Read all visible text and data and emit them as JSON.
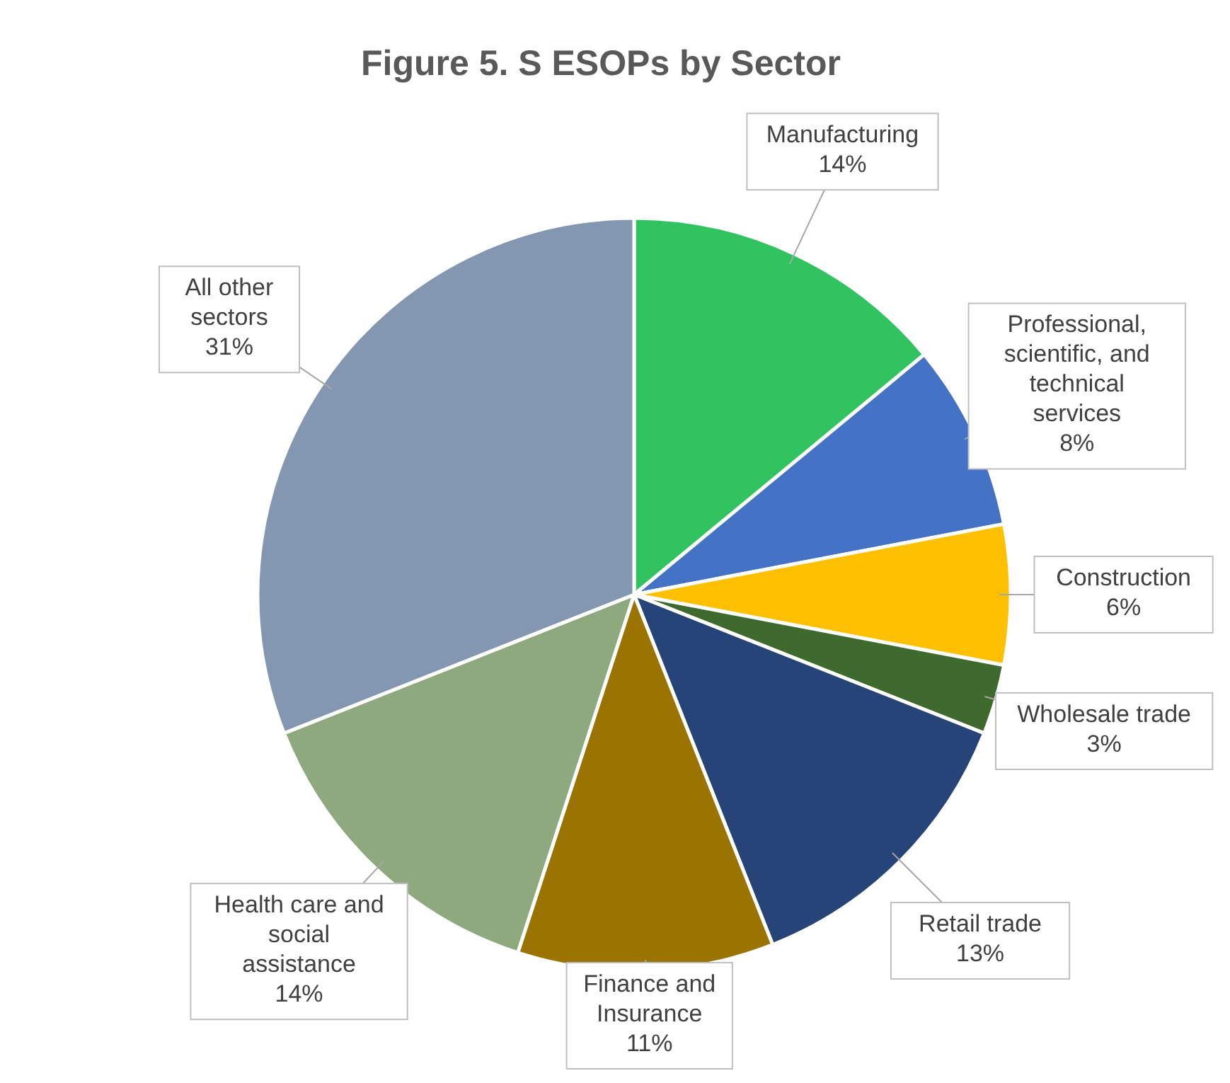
{
  "chart_data": {
    "type": "pie",
    "title": "Figure 5. S ESOPs by Sector",
    "categories": [
      "Manufacturing",
      "Professional, scientific, and technical services",
      "Construction",
      "Wholesale trade",
      "Retail trade",
      "Finance and Insurance",
      "Health care and social assistance",
      "All other sectors"
    ],
    "values": [
      14,
      8,
      6,
      3,
      13,
      11,
      14,
      31
    ],
    "colors": [
      "#31c35f",
      "#4472c4",
      "#ffc000",
      "#3f6a2e",
      "#264478",
      "#9a7300",
      "#8fa97f",
      "#8497b0"
    ],
    "value_labels": [
      "14%",
      "8%",
      "6%",
      "3%",
      "13%",
      "11%",
      "14%",
      "31%"
    ]
  }
}
